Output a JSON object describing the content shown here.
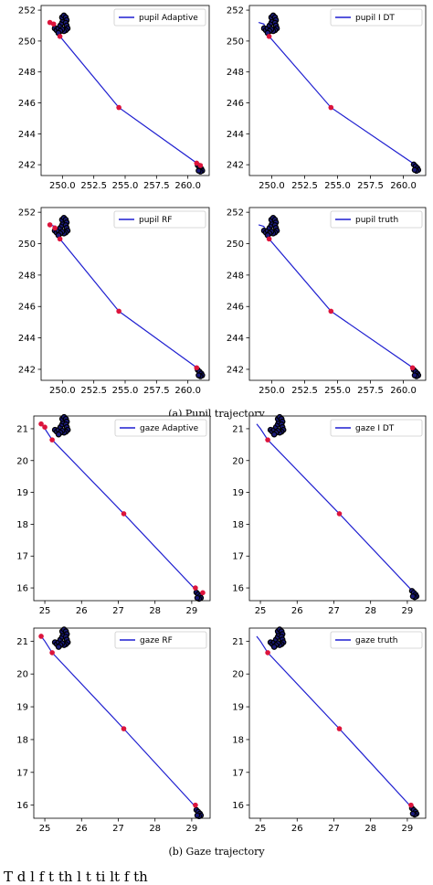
{
  "captions": {
    "pupil": "(a) Pupil trajectory",
    "gaze": "(b) Gaze trajectory"
  },
  "footer_text": "T d   l  f                t  th   l t ti      lt   f th",
  "colors": {
    "line": "#1f1fd0",
    "trail": "#000000",
    "start_point": "#1a1a7a",
    "highlight": "#dc143c"
  },
  "chart_data": [
    {
      "type": "line",
      "group": "pupil",
      "legend": "pupil Adaptive",
      "xlim": [
        248.3,
        261.7
      ],
      "ylim": [
        241.3,
        252.3
      ],
      "xticks": [
        "250.0",
        "252.5",
        "255.0",
        "257.5",
        "260.0"
      ],
      "xtick_values": [
        250.0,
        252.5,
        255.0,
        257.5,
        260.0
      ],
      "yticks": [
        "242",
        "244",
        "246",
        "248",
        "250",
        "252"
      ],
      "ytick_values": [
        242,
        244,
        246,
        248,
        250,
        252
      ],
      "series": [
        {
          "x": [
            249.0,
            249.4,
            249.8,
            254.5,
            260.9,
            261.0
          ],
          "y": [
            251.2,
            251.1,
            250.3,
            245.7,
            242.0,
            241.9
          ]
        }
      ],
      "highlights": [
        [
          249.0,
          251.2
        ],
        [
          249.3,
          251.1
        ],
        [
          249.8,
          250.3
        ],
        [
          254.5,
          245.7
        ],
        [
          260.7,
          242.1
        ],
        [
          261.0,
          241.95
        ]
      ],
      "cluster_center": [
        249.9,
        251.0
      ],
      "end_cluster_center": [
        261.0,
        241.85
      ]
    },
    {
      "type": "line",
      "group": "pupil",
      "legend": "pupil I DT",
      "xlim": [
        248.3,
        261.7
      ],
      "ylim": [
        241.3,
        252.3
      ],
      "xticks": [
        "250.0",
        "252.5",
        "255.0",
        "257.5",
        "260.0"
      ],
      "xtick_values": [
        250.0,
        252.5,
        255.0,
        257.5,
        260.0
      ],
      "yticks": [
        "242",
        "244",
        "246",
        "248",
        "250",
        "252"
      ],
      "ytick_values": [
        242,
        244,
        246,
        248,
        250,
        252
      ],
      "series": [
        {
          "x": [
            249.0,
            249.4,
            249.8,
            254.5,
            260.9,
            261.0
          ],
          "y": [
            251.2,
            251.1,
            250.3,
            245.7,
            242.0,
            241.9
          ]
        }
      ],
      "highlights": [
        [
          249.8,
          250.3
        ],
        [
          254.5,
          245.7
        ]
      ],
      "cluster_center": [
        249.9,
        251.0
      ],
      "end_cluster_center": [
        261.0,
        241.9
      ]
    },
    {
      "type": "line",
      "group": "pupil",
      "legend": "pupil RF",
      "xlim": [
        248.3,
        261.7
      ],
      "ylim": [
        241.3,
        252.3
      ],
      "xticks": [
        "250.0",
        "252.5",
        "255.0",
        "257.5",
        "260.0"
      ],
      "xtick_values": [
        250.0,
        252.5,
        255.0,
        257.5,
        260.0
      ],
      "yticks": [
        "242",
        "244",
        "246",
        "248",
        "250",
        "252"
      ],
      "ytick_values": [
        242,
        244,
        246,
        248,
        250,
        252
      ],
      "series": [
        {
          "x": [
            249.0,
            249.4,
            249.8,
            254.5,
            260.9,
            261.0
          ],
          "y": [
            251.2,
            251.1,
            250.3,
            245.7,
            242.0,
            241.9
          ]
        }
      ],
      "highlights": [
        [
          249.0,
          251.2
        ],
        [
          249.4,
          251.0
        ],
        [
          249.8,
          250.3
        ],
        [
          254.5,
          245.7
        ],
        [
          260.7,
          242.1
        ]
      ],
      "cluster_center": [
        249.9,
        251.0
      ],
      "end_cluster_center": [
        261.0,
        241.85
      ]
    },
    {
      "type": "line",
      "group": "pupil",
      "legend": "pupil truth",
      "xlim": [
        248.3,
        261.7
      ],
      "ylim": [
        241.3,
        252.3
      ],
      "xticks": [
        "250.0",
        "252.5",
        "255.0",
        "257.5",
        "260.0"
      ],
      "xtick_values": [
        250.0,
        252.5,
        255.0,
        257.5,
        260.0
      ],
      "yticks": [
        "242",
        "244",
        "246",
        "248",
        "250",
        "252"
      ],
      "ytick_values": [
        242,
        244,
        246,
        248,
        250,
        252
      ],
      "series": [
        {
          "x": [
            249.0,
            249.4,
            249.8,
            254.5,
            260.9,
            261.0
          ],
          "y": [
            251.2,
            251.1,
            250.3,
            245.7,
            242.0,
            241.9
          ]
        }
      ],
      "highlights": [
        [
          249.8,
          250.3
        ],
        [
          254.5,
          245.7
        ],
        [
          260.7,
          242.1
        ]
      ],
      "cluster_center": [
        249.9,
        251.0
      ],
      "end_cluster_center": [
        261.0,
        241.85
      ]
    },
    {
      "type": "line",
      "group": "gaze",
      "legend": "gaze Adaptive",
      "xlim": [
        24.7,
        29.5
      ],
      "ylim": [
        15.6,
        21.4
      ],
      "xticks": [
        "25",
        "26",
        "27",
        "28",
        "29"
      ],
      "xtick_values": [
        25,
        26,
        27,
        28,
        29
      ],
      "yticks": [
        "16",
        "17",
        "18",
        "19",
        "20",
        "21"
      ],
      "ytick_values": [
        16,
        17,
        18,
        19,
        20,
        21
      ],
      "series": [
        {
          "x": [
            24.9,
            25.0,
            25.2,
            27.15,
            29.1,
            29.2
          ],
          "y": [
            21.15,
            21.0,
            20.65,
            18.33,
            15.95,
            15.8
          ]
        }
      ],
      "highlights": [
        [
          24.9,
          21.15
        ],
        [
          25.0,
          21.05
        ],
        [
          25.2,
          20.65
        ],
        [
          27.15,
          18.33
        ],
        [
          29.1,
          16.0
        ],
        [
          29.3,
          15.85
        ]
      ],
      "cluster_center": [
        25.45,
        21.05
      ],
      "end_cluster_center": [
        29.2,
        15.8
      ]
    },
    {
      "type": "line",
      "group": "gaze",
      "legend": "gaze I DT",
      "xlim": [
        24.7,
        29.5
      ],
      "ylim": [
        15.6,
        21.4
      ],
      "xticks": [
        "25",
        "26",
        "27",
        "28",
        "29"
      ],
      "xtick_values": [
        25,
        26,
        27,
        28,
        29
      ],
      "yticks": [
        "16",
        "17",
        "18",
        "19",
        "20",
        "21"
      ],
      "ytick_values": [
        16,
        17,
        18,
        19,
        20,
        21
      ],
      "series": [
        {
          "x": [
            24.9,
            25.0,
            25.2,
            27.15,
            29.1,
            29.2
          ],
          "y": [
            21.15,
            21.0,
            20.65,
            18.33,
            15.95,
            15.8
          ]
        }
      ],
      "highlights": [
        [
          25.2,
          20.65
        ],
        [
          27.15,
          18.33
        ]
      ],
      "cluster_center": [
        25.45,
        21.05
      ],
      "end_cluster_center": [
        29.2,
        15.85
      ]
    },
    {
      "type": "line",
      "group": "gaze",
      "legend": "gaze RF",
      "xlim": [
        24.7,
        29.5
      ],
      "ylim": [
        15.6,
        21.4
      ],
      "xticks": [
        "25",
        "26",
        "27",
        "28",
        "29"
      ],
      "xtick_values": [
        25,
        26,
        27,
        28,
        29
      ],
      "yticks": [
        "16",
        "17",
        "18",
        "19",
        "20",
        "21"
      ],
      "ytick_values": [
        16,
        17,
        18,
        19,
        20,
        21
      ],
      "series": [
        {
          "x": [
            24.9,
            25.0,
            25.2,
            27.15,
            29.1,
            29.2
          ],
          "y": [
            21.15,
            21.0,
            20.65,
            18.33,
            15.95,
            15.8
          ]
        }
      ],
      "highlights": [
        [
          24.9,
          21.15
        ],
        [
          25.2,
          20.65
        ],
        [
          27.15,
          18.33
        ],
        [
          29.1,
          16.0
        ]
      ],
      "cluster_center": [
        25.45,
        21.05
      ],
      "end_cluster_center": [
        29.2,
        15.8
      ]
    },
    {
      "type": "line",
      "group": "gaze",
      "legend": "gaze truth",
      "xlim": [
        24.7,
        29.5
      ],
      "ylim": [
        15.6,
        21.4
      ],
      "xticks": [
        "25",
        "26",
        "27",
        "28",
        "29"
      ],
      "xtick_values": [
        25,
        26,
        27,
        28,
        29
      ],
      "yticks": [
        "16",
        "17",
        "18",
        "19",
        "20",
        "21"
      ],
      "ytick_values": [
        16,
        17,
        18,
        19,
        20,
        21
      ],
      "series": [
        {
          "x": [
            24.9,
            25.0,
            25.2,
            27.15,
            29.1,
            29.2
          ],
          "y": [
            21.15,
            21.0,
            20.65,
            18.33,
            15.95,
            15.8
          ]
        }
      ],
      "highlights": [
        [
          25.2,
          20.65
        ],
        [
          27.15,
          18.33
        ],
        [
          29.1,
          16.0
        ]
      ],
      "cluster_center": [
        25.45,
        21.05
      ],
      "end_cluster_center": [
        29.2,
        15.85
      ]
    }
  ]
}
